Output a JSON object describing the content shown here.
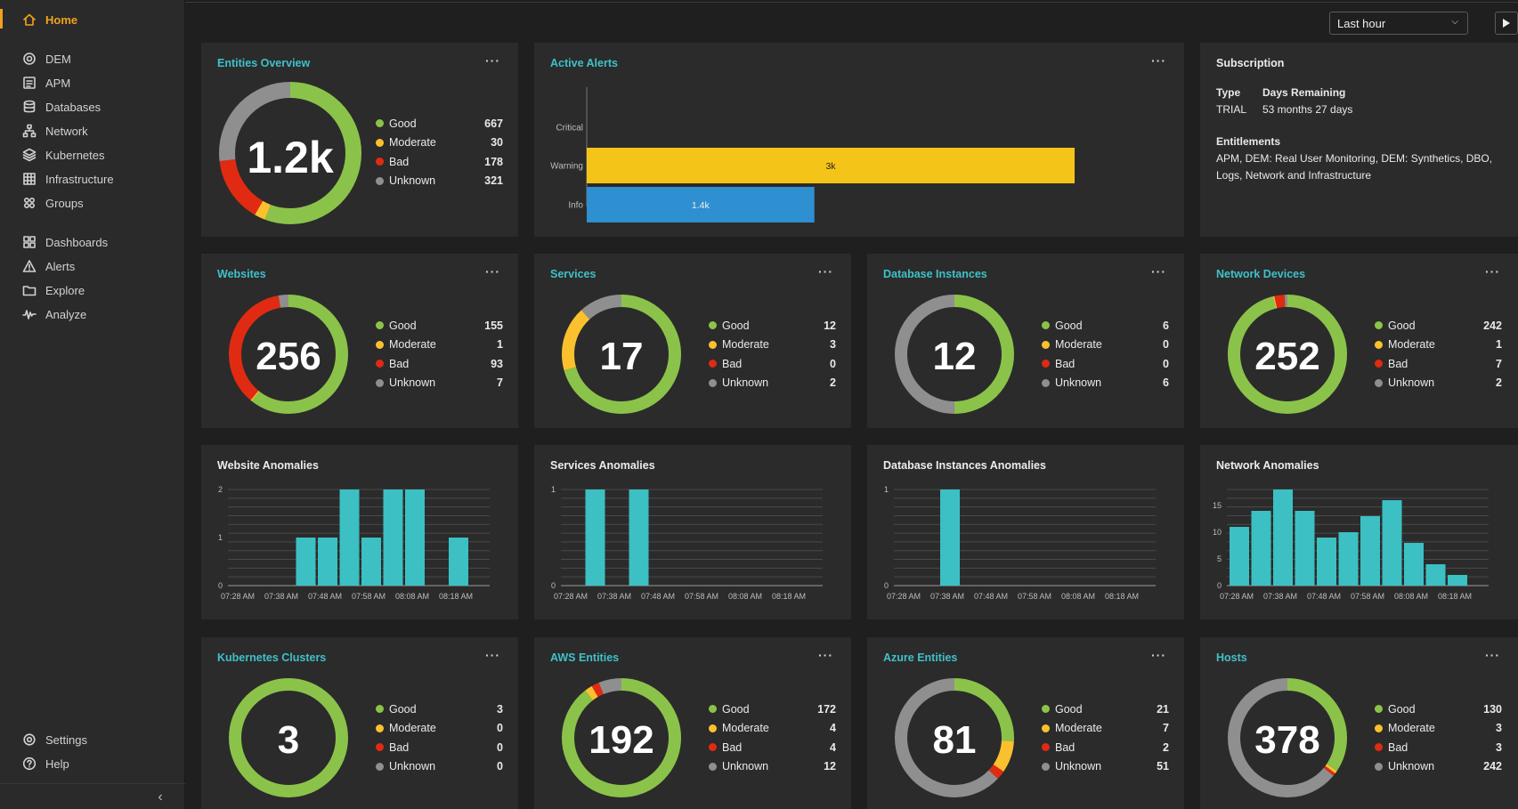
{
  "colors": {
    "good": "#8bc34a",
    "moderate": "#fbc02d",
    "bad": "#e02b12",
    "unknown": "#8f8f8f",
    "accent": "#f2a11c",
    "teal": "#3fc1c9",
    "alert_warning": "#f4c418",
    "alert_info": "#2e8fd1"
  },
  "sidebar": {
    "items": [
      {
        "label": "Home",
        "icon": "home-icon"
      },
      {
        "label": "DEM",
        "icon": "dem-icon"
      },
      {
        "label": "APM",
        "icon": "apm-icon"
      },
      {
        "label": "Databases",
        "icon": "database-icon"
      },
      {
        "label": "Network",
        "icon": "network-icon"
      },
      {
        "label": "Kubernetes",
        "icon": "kubernetes-icon"
      },
      {
        "label": "Infrastructure",
        "icon": "infrastructure-icon"
      },
      {
        "label": "Groups",
        "icon": "groups-icon"
      },
      {
        "label": "Dashboards",
        "icon": "dashboards-icon"
      },
      {
        "label": "Alerts",
        "icon": "alerts-icon"
      },
      {
        "label": "Explore",
        "icon": "explore-icon"
      },
      {
        "label": "Analyze",
        "icon": "analyze-icon"
      },
      {
        "label": "Settings",
        "icon": "settings-icon"
      },
      {
        "label": "Help",
        "icon": "help-icon"
      }
    ],
    "collapse_glyph": "‹"
  },
  "toolbar": {
    "time_range": "Last hour",
    "play_label": "▶"
  },
  "legend_labels": [
    "Good",
    "Moderate",
    "Bad",
    "Unknown"
  ],
  "menu_glyph": "···",
  "entities_overview": {
    "title": "Entities Overview",
    "total": "1.2k",
    "values": [
      667,
      30,
      178,
      321
    ]
  },
  "active_alerts": {
    "title": "Active Alerts",
    "chart_data": {
      "type": "bar",
      "orientation": "horizontal",
      "categories": [
        "Critical",
        "Warning",
        "Info"
      ],
      "values": [
        0,
        3000,
        1400
      ],
      "labels": [
        "",
        "3k",
        "1.4k"
      ]
    }
  },
  "subscription": {
    "title": "Subscription",
    "type_label": "Type",
    "type_value": "TRIAL",
    "days_label": "Days Remaining",
    "days_value": "53 months 27 days",
    "entitlements_label": "Entitlements",
    "entitlements_line1": "APM, DEM: Real User Monitoring, DEM: Synthetics, DBO,",
    "entitlements_line2": "Logs, Network and Infrastructure"
  },
  "status_cards": [
    {
      "title": "Websites",
      "total": "256",
      "values": [
        155,
        1,
        93,
        7
      ]
    },
    {
      "title": "Services",
      "total": "17",
      "values": [
        12,
        3,
        0,
        2
      ]
    },
    {
      "title": "Database Instances",
      "total": "12",
      "values": [
        6,
        0,
        0,
        6
      ]
    },
    {
      "title": "Network Devices",
      "total": "252",
      "values": [
        242,
        1,
        7,
        2
      ]
    },
    {
      "title": "Kubernetes Clusters",
      "total": "3",
      "values": [
        3,
        0,
        0,
        0
      ]
    },
    {
      "title": "AWS Entities",
      "total": "192",
      "values": [
        172,
        4,
        4,
        12
      ]
    },
    {
      "title": "Azure Entities",
      "total": "81",
      "values": [
        21,
        7,
        2,
        51
      ]
    },
    {
      "title": "Hosts",
      "total": "378",
      "values": [
        130,
        3,
        3,
        242
      ]
    }
  ],
  "anomalies": [
    {
      "title": "Website Anomalies",
      "chart_data": {
        "type": "bar",
        "x_ticks": [
          "07:28 AM",
          "07:38 AM",
          "07:48 AM",
          "07:58 AM",
          "08:08 AM",
          "08:18 AM"
        ],
        "y_ticks": [
          0,
          1,
          2
        ],
        "ylim": [
          0,
          2
        ],
        "values": [
          0,
          0,
          0,
          1,
          1,
          2,
          1,
          2,
          2,
          0,
          1,
          0,
          0
        ]
      }
    },
    {
      "title": "Services Anomalies",
      "chart_data": {
        "type": "bar",
        "x_ticks": [
          "07:28 AM",
          "07:38 AM",
          "07:48 AM",
          "07:58 AM",
          "08:08 AM",
          "08:18 AM"
        ],
        "y_ticks": [
          0,
          1
        ],
        "ylim": [
          0,
          1
        ],
        "values": [
          0,
          1,
          0,
          1,
          0,
          0,
          0,
          0,
          0,
          0,
          0,
          0,
          0
        ]
      }
    },
    {
      "title": "Database Instances Anomalies",
      "chart_data": {
        "type": "bar",
        "x_ticks": [
          "07:28 AM",
          "07:38 AM",
          "07:48 AM",
          "07:58 AM",
          "08:08 AM",
          "08:18 AM"
        ],
        "y_ticks": [
          0,
          1
        ],
        "ylim": [
          0,
          1
        ],
        "values": [
          0,
          0,
          1,
          0,
          0,
          0,
          0,
          0,
          0,
          0,
          0,
          0,
          0
        ]
      }
    },
    {
      "title": "Network Anomalies",
      "chart_data": {
        "type": "bar",
        "x_ticks": [
          "07:28 AM",
          "07:38 AM",
          "07:48 AM",
          "07:58 AM",
          "08:08 AM",
          "08:18 AM"
        ],
        "y_ticks": [
          0,
          5,
          10,
          15
        ],
        "ylim": [
          0,
          18
        ],
        "values": [
          11,
          14,
          18,
          14,
          9,
          10,
          13,
          16,
          8,
          4,
          2,
          0,
          0
        ]
      }
    }
  ]
}
